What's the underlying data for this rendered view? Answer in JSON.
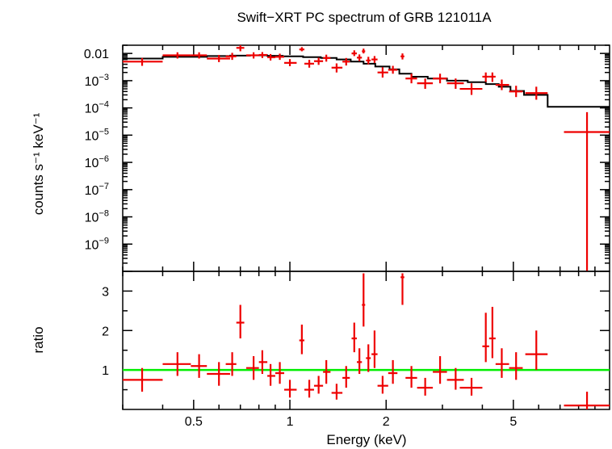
{
  "chart_data": [
    {
      "type": "scatter",
      "title": "Swift−XRT PC spectrum of GRB 121011A",
      "ylabel": "counts s⁻¹ keV⁻¹",
      "xlabel": "",
      "x_scale": "log",
      "y_scale": "log",
      "xlim": [
        0.3,
        10
      ],
      "ylim": [
        1e-10,
        0.02
      ],
      "yticks": [
        {
          "value": 0.01,
          "base": "0.01",
          "exp": ""
        },
        {
          "value": 0.001,
          "base": "10",
          "exp": "−3"
        },
        {
          "value": 0.0001,
          "base": "10",
          "exp": "−4"
        },
        {
          "value": 1e-05,
          "base": "10",
          "exp": "−5"
        },
        {
          "value": 1e-06,
          "base": "10",
          "exp": "−6"
        },
        {
          "value": 1e-07,
          "base": "10",
          "exp": "−7"
        },
        {
          "value": 1e-08,
          "base": "10",
          "exp": "−8"
        },
        {
          "value": 1e-09,
          "base": "10",
          "exp": "−9"
        }
      ],
      "colors": {
        "data": "#ee0000",
        "model": "#000000"
      },
      "series": [
        {
          "kind": "data",
          "points": [
            {
              "x": 0.345,
              "xlo": 0.3,
              "xhi": 0.4,
              "y": 0.005,
              "ylo": 0.0035,
              "yhi": 0.0068
            },
            {
              "x": 0.445,
              "xlo": 0.4,
              "xhi": 0.49,
              "y": 0.0085,
              "ylo": 0.0065,
              "yhi": 0.011
            },
            {
              "x": 0.52,
              "xlo": 0.49,
              "xhi": 0.55,
              "y": 0.0085,
              "ylo": 0.0065,
              "yhi": 0.011
            },
            {
              "x": 0.6,
              "xlo": 0.55,
              "xhi": 0.65,
              "y": 0.0065,
              "ylo": 0.0048,
              "yhi": 0.0088
            },
            {
              "x": 0.66,
              "xlo": 0.63,
              "xhi": 0.68,
              "y": 0.0078,
              "ylo": 0.0058,
              "yhi": 0.0105
            },
            {
              "x": 0.7,
              "xlo": 0.68,
              "xhi": 0.72,
              "y": 0.016,
              "ylo": 0.012,
              "yhi": 0.02
            },
            {
              "x": 0.77,
              "xlo": 0.73,
              "xhi": 0.8,
              "y": 0.0085,
              "ylo": 0.0065,
              "yhi": 0.011
            },
            {
              "x": 0.82,
              "xlo": 0.8,
              "xhi": 0.85,
              "y": 0.0088,
              "ylo": 0.0068,
              "yhi": 0.0112
            },
            {
              "x": 0.87,
              "xlo": 0.85,
              "xhi": 0.9,
              "y": 0.0072,
              "ylo": 0.0055,
              "yhi": 0.0095
            },
            {
              "x": 0.93,
              "xlo": 0.9,
              "xhi": 0.96,
              "y": 0.0075,
              "ylo": 0.0058,
              "yhi": 0.0098
            },
            {
              "x": 1.0,
              "xlo": 0.96,
              "xhi": 1.05,
              "y": 0.0045,
              "ylo": 0.0034,
              "yhi": 0.0062
            },
            {
              "x": 1.09,
              "xlo": 1.07,
              "xhi": 1.11,
              "y": 0.014,
              "ylo": 0.012,
              "yhi": 0.017
            },
            {
              "x": 1.15,
              "xlo": 1.11,
              "xhi": 1.19,
              "y": 0.0042,
              "ylo": 0.003,
              "yhi": 0.0058
            },
            {
              "x": 1.23,
              "xlo": 1.19,
              "xhi": 1.27,
              "y": 0.0052,
              "ylo": 0.0038,
              "yhi": 0.007
            },
            {
              "x": 1.3,
              "xlo": 1.27,
              "xhi": 1.34,
              "y": 0.0068,
              "ylo": 0.005,
              "yhi": 0.009
            },
            {
              "x": 1.4,
              "xlo": 1.35,
              "xhi": 1.46,
              "y": 0.003,
              "ylo": 0.002,
              "yhi": 0.0043
            },
            {
              "x": 1.5,
              "xlo": 1.46,
              "xhi": 1.54,
              "y": 0.005,
              "ylo": 0.0036,
              "yhi": 0.0068
            },
            {
              "x": 1.59,
              "xlo": 1.56,
              "xhi": 1.62,
              "y": 0.01,
              "ylo": 0.008,
              "yhi": 0.013
            },
            {
              "x": 1.65,
              "xlo": 1.62,
              "xhi": 1.68,
              "y": 0.007,
              "ylo": 0.0052,
              "yhi": 0.0092
            },
            {
              "x": 1.7,
              "xlo": 1.68,
              "xhi": 1.72,
              "y": 0.012,
              "ylo": 0.01,
              "yhi": 0.015
            },
            {
              "x": 1.76,
              "xlo": 1.73,
              "xhi": 1.79,
              "y": 0.0055,
              "ylo": 0.004,
              "yhi": 0.0075
            },
            {
              "x": 1.84,
              "xlo": 1.8,
              "xhi": 1.88,
              "y": 0.006,
              "ylo": 0.0045,
              "yhi": 0.008
            },
            {
              "x": 1.95,
              "xlo": 1.88,
              "xhi": 2.03,
              "y": 0.002,
              "ylo": 0.0013,
              "yhi": 0.0031
            },
            {
              "x": 2.1,
              "xlo": 2.03,
              "xhi": 2.17,
              "y": 0.0025,
              "ylo": 0.0018,
              "yhi": 0.0035
            },
            {
              "x": 2.25,
              "xlo": 2.22,
              "xhi": 2.28,
              "y": 0.0078,
              "ylo": 0.006,
              "yhi": 0.01
            },
            {
              "x": 2.4,
              "xlo": 2.3,
              "xhi": 2.5,
              "y": 0.0012,
              "ylo": 0.0008,
              "yhi": 0.0018
            },
            {
              "x": 2.65,
              "xlo": 2.5,
              "xhi": 2.8,
              "y": 0.0008,
              "ylo": 0.0005,
              "yhi": 0.0012
            },
            {
              "x": 2.95,
              "xlo": 2.8,
              "xhi": 3.1,
              "y": 0.0012,
              "ylo": 0.0008,
              "yhi": 0.0018
            },
            {
              "x": 3.3,
              "xlo": 3.1,
              "xhi": 3.5,
              "y": 0.0008,
              "ylo": 0.0005,
              "yhi": 0.0012
            },
            {
              "x": 3.7,
              "xlo": 3.4,
              "xhi": 4.0,
              "y": 0.0005,
              "ylo": 0.0003,
              "yhi": 0.0008
            },
            {
              "x": 4.1,
              "xlo": 4.0,
              "xhi": 4.2,
              "y": 0.0014,
              "ylo": 0.0009,
              "yhi": 0.002
            },
            {
              "x": 4.3,
              "xlo": 4.2,
              "xhi": 4.4,
              "y": 0.0014,
              "ylo": 0.0009,
              "yhi": 0.002
            },
            {
              "x": 4.6,
              "xlo": 4.4,
              "xhi": 4.85,
              "y": 0.0007,
              "ylo": 0.00045,
              "yhi": 0.0011
            },
            {
              "x": 5.1,
              "xlo": 4.85,
              "xhi": 5.35,
              "y": 0.0004,
              "ylo": 0.00025,
              "yhi": 0.00065
            },
            {
              "x": 5.9,
              "xlo": 5.45,
              "xhi": 6.4,
              "y": 0.00035,
              "ylo": 0.0002,
              "yhi": 0.0006
            },
            {
              "x": 8.5,
              "xlo": 7.2,
              "xhi": 10.0,
              "y": 1.3e-05,
              "ylo": 1e-10,
              "yhi": 7e-05
            }
          ]
        },
        {
          "kind": "model",
          "steps": [
            {
              "xlo": 0.3,
              "xhi": 0.4,
              "y": 0.0065
            },
            {
              "xlo": 0.4,
              "xhi": 0.55,
              "y": 0.0075
            },
            {
              "xlo": 0.55,
              "xhi": 0.65,
              "y": 0.008
            },
            {
              "xlo": 0.65,
              "xhi": 0.75,
              "y": 0.0083
            },
            {
              "xlo": 0.75,
              "xhi": 0.85,
              "y": 0.0085
            },
            {
              "xlo": 0.85,
              "xhi": 0.95,
              "y": 0.0082
            },
            {
              "xlo": 0.95,
              "xhi": 1.1,
              "y": 0.0078
            },
            {
              "xlo": 1.1,
              "xhi": 1.25,
              "y": 0.0073
            },
            {
              "xlo": 1.25,
              "xhi": 1.4,
              "y": 0.0068
            },
            {
              "xlo": 1.4,
              "xhi": 1.55,
              "y": 0.006
            },
            {
              "xlo": 1.55,
              "xhi": 1.7,
              "y": 0.005
            },
            {
              "xlo": 1.7,
              "xhi": 1.85,
              "y": 0.0042
            },
            {
              "xlo": 1.85,
              "xhi": 2.05,
              "y": 0.0033
            },
            {
              "xlo": 2.05,
              "xhi": 2.2,
              "y": 0.0026
            },
            {
              "xlo": 2.2,
              "xhi": 2.4,
              "y": 0.0018
            },
            {
              "xlo": 2.4,
              "xhi": 2.7,
              "y": 0.0014
            },
            {
              "xlo": 2.7,
              "xhi": 3.1,
              "y": 0.0012
            },
            {
              "xlo": 3.1,
              "xhi": 3.6,
              "y": 0.001
            },
            {
              "xlo": 3.6,
              "xhi": 4.1,
              "y": 0.00088
            },
            {
              "xlo": 4.1,
              "xhi": 4.5,
              "y": 0.00075
            },
            {
              "xlo": 4.5,
              "xhi": 4.9,
              "y": 0.0006
            },
            {
              "xlo": 4.9,
              "xhi": 5.4,
              "y": 0.00042
            },
            {
              "xlo": 5.4,
              "xhi": 6.4,
              "y": 0.0003
            },
            {
              "xlo": 6.4,
              "xhi": 7.2,
              "y": 0.00011
            },
            {
              "xlo": 7.2,
              "xhi": 10.0,
              "y": 0.00011
            }
          ]
        }
      ]
    },
    {
      "type": "scatter",
      "ylabel": "ratio",
      "xlabel": "Energy (keV)",
      "x_scale": "log",
      "y_scale": "linear",
      "xlim": [
        0.3,
        10
      ],
      "ylim": [
        0,
        3.5
      ],
      "xticks": [
        {
          "value": 0.5,
          "label": "0.5"
        },
        {
          "value": 1,
          "label": "1"
        },
        {
          "value": 2,
          "label": "2"
        },
        {
          "value": 5,
          "label": "5"
        }
      ],
      "yticks": [
        {
          "value": 1,
          "label": "1"
        },
        {
          "value": 2,
          "label": "2"
        },
        {
          "value": 3,
          "label": "3"
        }
      ],
      "reference_line": {
        "y": 1,
        "color": "#00ee00"
      },
      "colors": {
        "data": "#ee0000"
      },
      "series": [
        {
          "kind": "data",
          "points": [
            {
              "x": 0.345,
              "xlo": 0.3,
              "xhi": 0.4,
              "y": 0.75,
              "ylo": 0.45,
              "yhi": 1.05
            },
            {
              "x": 0.445,
              "xlo": 0.4,
              "xhi": 0.49,
              "y": 1.15,
              "ylo": 0.85,
              "yhi": 1.45
            },
            {
              "x": 0.52,
              "xlo": 0.49,
              "xhi": 0.55,
              "y": 1.1,
              "ylo": 0.8,
              "yhi": 1.4
            },
            {
              "x": 0.6,
              "xlo": 0.55,
              "xhi": 0.65,
              "y": 0.9,
              "ylo": 0.6,
              "yhi": 1.2
            },
            {
              "x": 0.66,
              "xlo": 0.63,
              "xhi": 0.68,
              "y": 1.15,
              "ylo": 0.85,
              "yhi": 1.45
            },
            {
              "x": 0.7,
              "xlo": 0.68,
              "xhi": 0.72,
              "y": 2.2,
              "ylo": 1.8,
              "yhi": 2.65
            },
            {
              "x": 0.77,
              "xlo": 0.73,
              "xhi": 0.8,
              "y": 1.05,
              "ylo": 0.75,
              "yhi": 1.35
            },
            {
              "x": 0.82,
              "xlo": 0.8,
              "xhi": 0.85,
              "y": 1.2,
              "ylo": 0.9,
              "yhi": 1.5
            },
            {
              "x": 0.87,
              "xlo": 0.85,
              "xhi": 0.9,
              "y": 0.85,
              "ylo": 0.6,
              "yhi": 1.15
            },
            {
              "x": 0.93,
              "xlo": 0.9,
              "xhi": 0.96,
              "y": 0.92,
              "ylo": 0.65,
              "yhi": 1.2
            },
            {
              "x": 1.0,
              "xlo": 0.96,
              "xhi": 1.05,
              "y": 0.5,
              "ylo": 0.3,
              "yhi": 0.75
            },
            {
              "x": 1.09,
              "xlo": 1.07,
              "xhi": 1.11,
              "y": 1.75,
              "ylo": 1.4,
              "yhi": 2.15
            },
            {
              "x": 1.15,
              "xlo": 1.11,
              "xhi": 1.19,
              "y": 0.5,
              "ylo": 0.3,
              "yhi": 0.75
            },
            {
              "x": 1.23,
              "xlo": 1.19,
              "xhi": 1.27,
              "y": 0.6,
              "ylo": 0.4,
              "yhi": 0.85
            },
            {
              "x": 1.3,
              "xlo": 1.27,
              "xhi": 1.34,
              "y": 0.95,
              "ylo": 0.65,
              "yhi": 1.25
            },
            {
              "x": 1.4,
              "xlo": 1.35,
              "xhi": 1.46,
              "y": 0.42,
              "ylo": 0.25,
              "yhi": 0.65
            },
            {
              "x": 1.5,
              "xlo": 1.46,
              "xhi": 1.54,
              "y": 0.8,
              "ylo": 0.55,
              "yhi": 1.1
            },
            {
              "x": 1.59,
              "xlo": 1.56,
              "xhi": 1.62,
              "y": 1.8,
              "ylo": 1.45,
              "yhi": 2.2
            },
            {
              "x": 1.65,
              "xlo": 1.62,
              "xhi": 1.68,
              "y": 1.2,
              "ylo": 0.9,
              "yhi": 1.55
            },
            {
              "x": 1.7,
              "xlo": 1.68,
              "xhi": 1.72,
              "y": 2.65,
              "ylo": 2.1,
              "yhi": 3.45
            },
            {
              "x": 1.76,
              "xlo": 1.73,
              "xhi": 1.79,
              "y": 1.3,
              "ylo": 0.95,
              "yhi": 1.65
            },
            {
              "x": 1.84,
              "xlo": 1.8,
              "xhi": 1.88,
              "y": 1.4,
              "ylo": 1.05,
              "yhi": 2.0
            },
            {
              "x": 1.95,
              "xlo": 1.88,
              "xhi": 2.03,
              "y": 0.6,
              "ylo": 0.4,
              "yhi": 0.85
            },
            {
              "x": 2.1,
              "xlo": 2.03,
              "xhi": 2.17,
              "y": 0.92,
              "ylo": 0.65,
              "yhi": 1.25
            },
            {
              "x": 2.25,
              "xlo": 2.22,
              "xhi": 2.28,
              "y": 3.35,
              "ylo": 2.65,
              "yhi": 3.45
            },
            {
              "x": 2.4,
              "xlo": 2.3,
              "xhi": 2.5,
              "y": 0.8,
              "ylo": 0.55,
              "yhi": 1.1
            },
            {
              "x": 2.65,
              "xlo": 2.5,
              "xhi": 2.8,
              "y": 0.55,
              "ylo": 0.35,
              "yhi": 0.8
            },
            {
              "x": 2.95,
              "xlo": 2.8,
              "xhi": 3.1,
              "y": 0.95,
              "ylo": 0.65,
              "yhi": 1.35
            },
            {
              "x": 3.3,
              "xlo": 3.1,
              "xhi": 3.5,
              "y": 0.75,
              "ylo": 0.5,
              "yhi": 1.05
            },
            {
              "x": 3.7,
              "xlo": 3.4,
              "xhi": 4.0,
              "y": 0.55,
              "ylo": 0.35,
              "yhi": 0.8
            },
            {
              "x": 4.1,
              "xlo": 4.0,
              "xhi": 4.2,
              "y": 1.6,
              "ylo": 1.2,
              "yhi": 2.45
            },
            {
              "x": 4.3,
              "xlo": 4.2,
              "xhi": 4.4,
              "y": 1.8,
              "ylo": 1.3,
              "yhi": 2.6
            },
            {
              "x": 4.6,
              "xlo": 4.4,
              "xhi": 4.85,
              "y": 1.15,
              "ylo": 0.8,
              "yhi": 1.55
            },
            {
              "x": 5.1,
              "xlo": 4.85,
              "xhi": 5.35,
              "y": 1.05,
              "ylo": 0.75,
              "yhi": 1.45
            },
            {
              "x": 5.9,
              "xlo": 5.45,
              "xhi": 6.4,
              "y": 1.4,
              "ylo": 1.0,
              "yhi": 2.0
            },
            {
              "x": 8.5,
              "xlo": 7.2,
              "xhi": 10.0,
              "y": 0.1,
              "ylo": 0.0,
              "yhi": 0.45
            }
          ]
        }
      ]
    }
  ]
}
